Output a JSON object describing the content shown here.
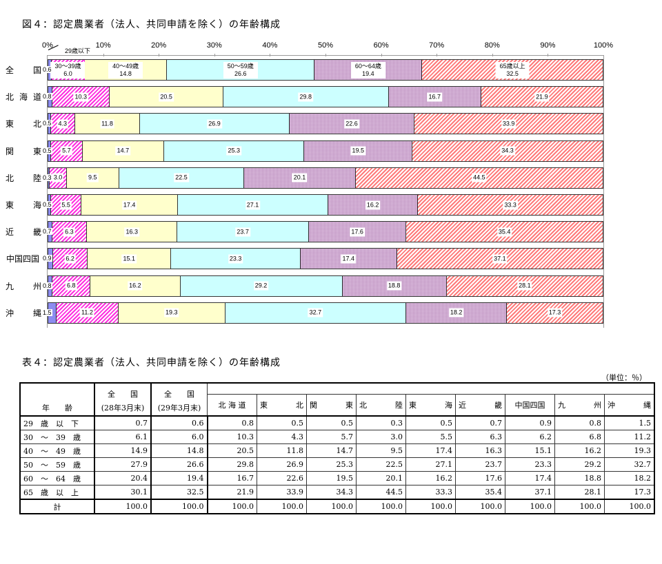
{
  "figure_title": "図４：認定農業者（法人、共同申請を除く）の年齢構成",
  "table_title": "表４：認定農業者（法人、共同申請を除く）の年齢構成",
  "unit_label": "（単位：％）",
  "chart_data": {
    "type": "bar",
    "orientation": "horizontal-stacked-100",
    "title": "図４：認定農業者（法人、共同申請を除く）の年齢構成",
    "xlim": [
      0,
      100
    ],
    "x_ticks": [
      "0%",
      "10%",
      "20%",
      "30%",
      "40%",
      "50%",
      "60%",
      "70%",
      "80%",
      "90%",
      "100%"
    ],
    "categories": [
      "全　国",
      "北海道",
      "東　北",
      "関　東",
      "北　陸",
      "東　海",
      "近　畿",
      "中国四国",
      "九　州",
      "沖　縄"
    ],
    "series": [
      {
        "name": "29歳以下",
        "color": "#8c8cf0",
        "values": [
          0.6,
          0.8,
          0.5,
          0.5,
          0.3,
          0.5,
          0.7,
          0.9,
          0.8,
          1.5
        ]
      },
      {
        "name": "30～39歳",
        "color": "#ff2ee0",
        "values": [
          6.0,
          10.3,
          4.3,
          5.7,
          3.0,
          5.5,
          6.3,
          6.2,
          6.8,
          11.2
        ]
      },
      {
        "name": "40～49歳",
        "color": "#ffffcc",
        "values": [
          14.8,
          20.5,
          11.8,
          14.7,
          9.5,
          17.4,
          16.3,
          15.1,
          16.2,
          19.3
        ]
      },
      {
        "name": "50～59歳",
        "color": "#ccffff",
        "values": [
          26.6,
          29.8,
          26.9,
          25.3,
          22.5,
          27.1,
          23.7,
          23.3,
          29.2,
          32.7
        ]
      },
      {
        "name": "60～64歳",
        "color": "#d8b4dc",
        "values": [
          19.4,
          16.7,
          22.6,
          19.5,
          20.1,
          16.2,
          17.6,
          17.4,
          18.8,
          18.2
        ]
      },
      {
        "name": "65歳以上",
        "color": "#ff7a7a",
        "values": [
          32.5,
          21.9,
          33.9,
          34.3,
          44.5,
          33.3,
          35.4,
          37.1,
          28.1,
          17.3
        ]
      }
    ],
    "legend": "inline labels on 全国 bar",
    "grid": false
  },
  "chart_rows": [
    {
      "label": [
        "全",
        "国"
      ]
    },
    {
      "label": [
        "北",
        "海",
        "道"
      ]
    },
    {
      "label": [
        "東",
        "北"
      ]
    },
    {
      "label": [
        "関",
        "東"
      ]
    },
    {
      "label": [
        "北",
        "陸"
      ]
    },
    {
      "label": [
        "東",
        "海"
      ]
    },
    {
      "label": [
        "近",
        "畿"
      ]
    },
    {
      "label": [
        "中国四国"
      ]
    },
    {
      "label": [
        "九",
        "州"
      ]
    },
    {
      "label": [
        "沖",
        "縄"
      ]
    }
  ],
  "table": {
    "age_header": "年　　齢",
    "col_headers": [
      {
        "line1": "全　　国",
        "line2": "(28年3月末)"
      },
      {
        "line1": "全　　国",
        "line2": "(29年3月末)"
      },
      {
        "line1": "北 海 道"
      },
      {
        "line1": "東　　北"
      },
      {
        "line1": "関　　東"
      },
      {
        "line1": "北　　陸"
      },
      {
        "line1": "東　　海"
      },
      {
        "line1": "近　　畿"
      },
      {
        "line1": "中国四国"
      },
      {
        "line1": "九　　州"
      },
      {
        "line1": "沖　　縄"
      }
    ],
    "rows": [
      {
        "label": "29　歳　以　下",
        "values": [
          "0.7",
          "0.6",
          "0.8",
          "0.5",
          "0.5",
          "0.3",
          "0.5",
          "0.7",
          "0.9",
          "0.8",
          "1.5"
        ]
      },
      {
        "label": "30　～　39　歳",
        "values": [
          "6.1",
          "6.0",
          "10.3",
          "4.3",
          "5.7",
          "3.0",
          "5.5",
          "6.3",
          "6.2",
          "6.8",
          "11.2"
        ]
      },
      {
        "label": "40　～　49　歳",
        "values": [
          "14.9",
          "14.8",
          "20.5",
          "11.8",
          "14.7",
          "9.5",
          "17.4",
          "16.3",
          "15.1",
          "16.2",
          "19.3"
        ]
      },
      {
        "label": "50　～　59　歳",
        "values": [
          "27.9",
          "26.6",
          "29.8",
          "26.9",
          "25.3",
          "22.5",
          "27.1",
          "23.7",
          "23.3",
          "29.2",
          "32.7"
        ]
      },
      {
        "label": "60　～　64　歳",
        "values": [
          "20.4",
          "19.4",
          "16.7",
          "22.6",
          "19.5",
          "20.1",
          "16.2",
          "17.6",
          "17.4",
          "18.8",
          "18.2"
        ]
      },
      {
        "label": "65　歳　以　上",
        "values": [
          "30.1",
          "32.5",
          "21.9",
          "33.9",
          "34.3",
          "44.5",
          "33.3",
          "35.4",
          "37.1",
          "28.1",
          "17.3"
        ]
      }
    ],
    "total": {
      "label": "計",
      "values": [
        "100.0",
        "100.0",
        "100.0",
        "100.0",
        "100.0",
        "100.0",
        "100.0",
        "100.0",
        "100.0",
        "100.0",
        "100.0"
      ]
    }
  }
}
